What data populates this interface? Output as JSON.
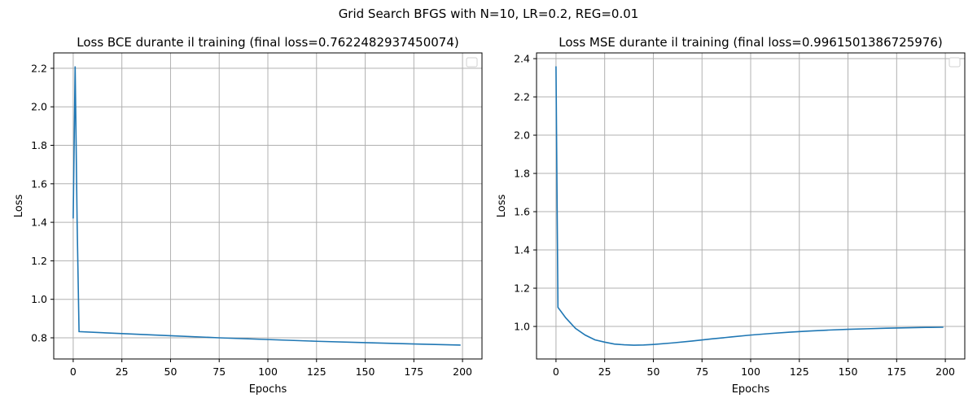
{
  "suptitle": "Grid Search BFGS with N=10, LR=0.2, REG=0.01",
  "chart_data": [
    {
      "type": "line",
      "title": "Loss BCE durante il training (final loss=0.7622482937450074)",
      "xlabel": "Epochs",
      "ylabel": "Loss",
      "xlim": [
        -10,
        210
      ],
      "ylim": [
        0.69,
        2.28
      ],
      "xticks": [
        0,
        25,
        50,
        75,
        100,
        125,
        150,
        175,
        200
      ],
      "yticks": [
        0.8,
        1.0,
        1.2,
        1.4,
        1.6,
        1.8,
        2.0,
        2.2
      ],
      "xtick_labels": [
        "0",
        "25",
        "50",
        "75",
        "100",
        "125",
        "150",
        "175",
        "200"
      ],
      "ytick_labels": [
        "0.8",
        "1.0",
        "1.2",
        "1.4",
        "1.6",
        "1.8",
        "2.0",
        "2.2"
      ],
      "grid": true,
      "legend": "top-right (empty)",
      "color": "#1f77b4",
      "series": [
        {
          "x": [
            0,
            1,
            2,
            3,
            25,
            50,
            75,
            100,
            125,
            150,
            175,
            199
          ],
          "y": [
            1.42,
            2.21,
            1.41,
            0.832,
            0.822,
            0.811,
            0.8,
            0.791,
            0.782,
            0.775,
            0.768,
            0.762
          ]
        }
      ]
    },
    {
      "type": "line",
      "title": "Loss MSE durante il training (final loss=0.9961501386725976)",
      "xlabel": "Epochs",
      "ylabel": "Loss",
      "xlim": [
        -10,
        210
      ],
      "ylim": [
        0.83,
        2.43
      ],
      "xticks": [
        0,
        25,
        50,
        75,
        100,
        125,
        150,
        175,
        200
      ],
      "yticks": [
        1.0,
        1.2,
        1.4,
        1.6,
        1.8,
        2.0,
        2.2,
        2.4
      ],
      "xtick_labels": [
        "0",
        "25",
        "50",
        "75",
        "100",
        "125",
        "150",
        "175",
        "200"
      ],
      "ytick_labels": [
        "1.0",
        "1.2",
        "1.4",
        "1.6",
        "1.8",
        "2.0",
        "2.2",
        "2.4"
      ],
      "grid": true,
      "legend": "top-right (empty)",
      "color": "#1f77b4",
      "series": [
        {
          "x": [
            0,
            1,
            5,
            10,
            15,
            20,
            25,
            30,
            35,
            40,
            45,
            50,
            60,
            70,
            80,
            90,
            100,
            110,
            120,
            130,
            140,
            150,
            160,
            170,
            180,
            190,
            199
          ],
          "y": [
            2.36,
            1.1,
            1.045,
            0.99,
            0.955,
            0.93,
            0.918,
            0.908,
            0.904,
            0.902,
            0.903,
            0.906,
            0.914,
            0.924,
            0.935,
            0.945,
            0.955,
            0.963,
            0.97,
            0.976,
            0.981,
            0.985,
            0.988,
            0.991,
            0.993,
            0.995,
            0.996
          ]
        }
      ]
    }
  ]
}
